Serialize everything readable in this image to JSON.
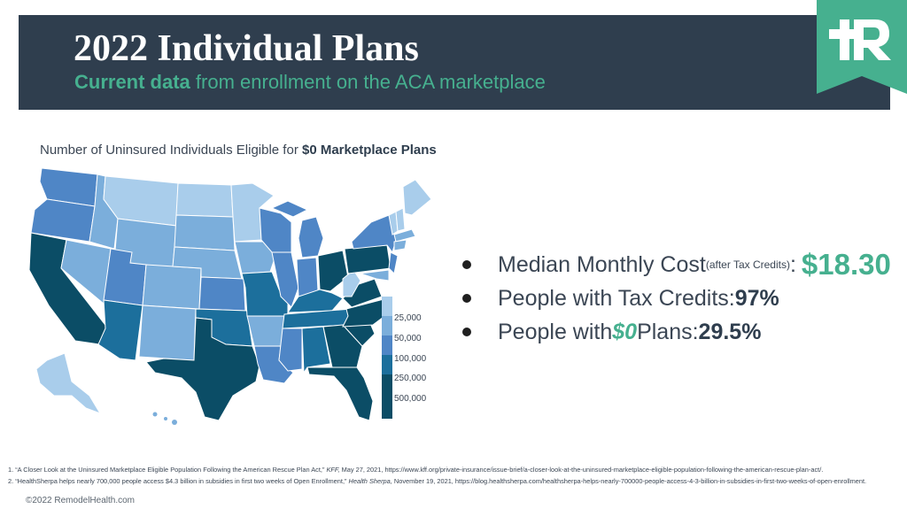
{
  "header": {
    "title": "2022 Individual Plans",
    "subtitle_bold": "Current data",
    "subtitle_rest": " from enrollment on the ACA marketplace"
  },
  "logo": {
    "icon": "plus-r-logo-icon",
    "color": "#46b08f"
  },
  "map": {
    "title_prefix": "Number of Uninsured Individuals Eligible for ",
    "title_bold": "$0 Marketplace Plans",
    "legend": [
      {
        "label": "25,000",
        "color": "#a9cdeb"
      },
      {
        "label": "50,000",
        "color": "#7baedb"
      },
      {
        "label": "100,000",
        "color": "#4f86c6"
      },
      {
        "label": "250,000",
        "color": "#1c6f9c"
      },
      {
        "label": "500,000",
        "color": "#0b4d66"
      }
    ]
  },
  "stats": {
    "cost_label": "Median Monthly Cost ",
    "cost_note": "(after Tax Credits)",
    "cost_colon": ":",
    "cost_value": "$18.30",
    "credits_label": "People with Tax Credits: ",
    "credits_value": "97%",
    "plans_prefix": "People with ",
    "plans_italic": "$0",
    "plans_suffix": " Plans: ",
    "plans_value": "29.5%"
  },
  "footnotes": {
    "n1_prefix": "1. “A Closer Look at the Uninsured Marketplace Eligible Population Following the American Rescue Plan Act,” ",
    "n1_italic": "KFF,",
    "n1_rest": " May 27, 2021, https://www.kff.org/private-insurance/issue-brief/a-closer-look-at-the-uninsured-marketplace-eligible-population-following-the-american-rescue-plan-act/.",
    "n2_prefix": "2. “HealthSherpa helps nearly 700,000 people access $4.3 billion in subsidies in first two weeks of Open Enrollment,” ",
    "n2_italic": "Health Sherpa,",
    "n2_rest": " November 19, 2021, https://blog.healthsherpa.com/healthsherpa-helps-nearly-700000-people-access-4-3-billion-in-subsidies-in-first-two-weeks-of-open-enrollment."
  },
  "copyright": "©2022 RemodelHealth.com"
}
